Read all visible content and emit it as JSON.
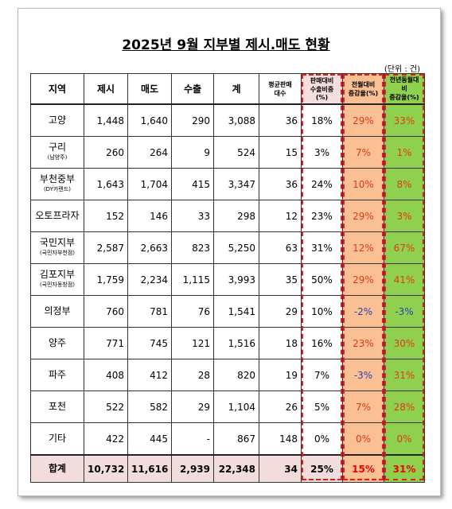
{
  "title": "2025년 9월 지부별 제시.매도 현황",
  "unit": "(단위 : 건)",
  "table": {
    "headers": [
      [
        "지역"
      ],
      [
        "제시"
      ],
      [
        "매도"
      ],
      [
        "수출"
      ],
      [
        "계"
      ],
      [
        "평균판매",
        "대수"
      ],
      [
        "판매대비",
        "수출비중(%)"
      ],
      [
        "전월대비",
        "증감율(%)"
      ],
      [
        "전년동월대비",
        "증감율(%)"
      ]
    ],
    "rows": [
      {
        "region": "고양",
        "cells": [
          "1,448",
          "1,640",
          "290",
          "3,088",
          "36",
          "18%",
          "29%",
          "33%"
        ]
      },
      {
        "region": "구리",
        "sub": "(남양주)",
        "cells": [
          "260",
          "264",
          "9",
          "524",
          "15",
          "3%",
          "7%",
          "1%"
        ]
      },
      {
        "region": "부천중부",
        "sub": "(DY카랜드)",
        "cells": [
          "1,643",
          "1,704",
          "415",
          "3,347",
          "36",
          "24%",
          "10%",
          "8%"
        ]
      },
      {
        "region": "오토프라자",
        "cells": [
          "152",
          "146",
          "33",
          "298",
          "12",
          "23%",
          "29%",
          "3%"
        ]
      },
      {
        "region": "국민지부",
        "sub": "(국민자부천점)",
        "cells": [
          "2,587",
          "2,663",
          "823",
          "5,250",
          "63",
          "31%",
          "12%",
          "67%"
        ]
      },
      {
        "region": "김포지부",
        "sub": "(국민자동창점)",
        "cells": [
          "1,759",
          "2,234",
          "1,115",
          "3,993",
          "35",
          "50%",
          "29%",
          "41%"
        ]
      },
      {
        "region": "의정부",
        "cells": [
          "760",
          "781",
          "76",
          "1,541",
          "29",
          "10%",
          "-2%",
          "-3%"
        ]
      },
      {
        "region": "양주",
        "cells": [
          "771",
          "745",
          "121",
          "1,516",
          "18",
          "16%",
          "23%",
          "30%"
        ]
      },
      {
        "region": "파주",
        "cells": [
          "408",
          "412",
          "28",
          "820",
          "19",
          "7%",
          "-3%",
          "31%"
        ]
      },
      {
        "region": "포천",
        "cells": [
          "522",
          "582",
          "29",
          "1,104",
          "26",
          "5%",
          "7%",
          "28%"
        ]
      },
      {
        "region": "기타",
        "cells": [
          "422",
          "445",
          "-",
          "867",
          "148",
          "0%",
          "0%",
          "0%"
        ]
      }
    ],
    "total": {
      "region": "합계",
      "cells": [
        "10,732",
        "11,616",
        "2,939",
        "22,348",
        "34",
        "25%",
        "15%",
        "31%"
      ]
    }
  }
}
